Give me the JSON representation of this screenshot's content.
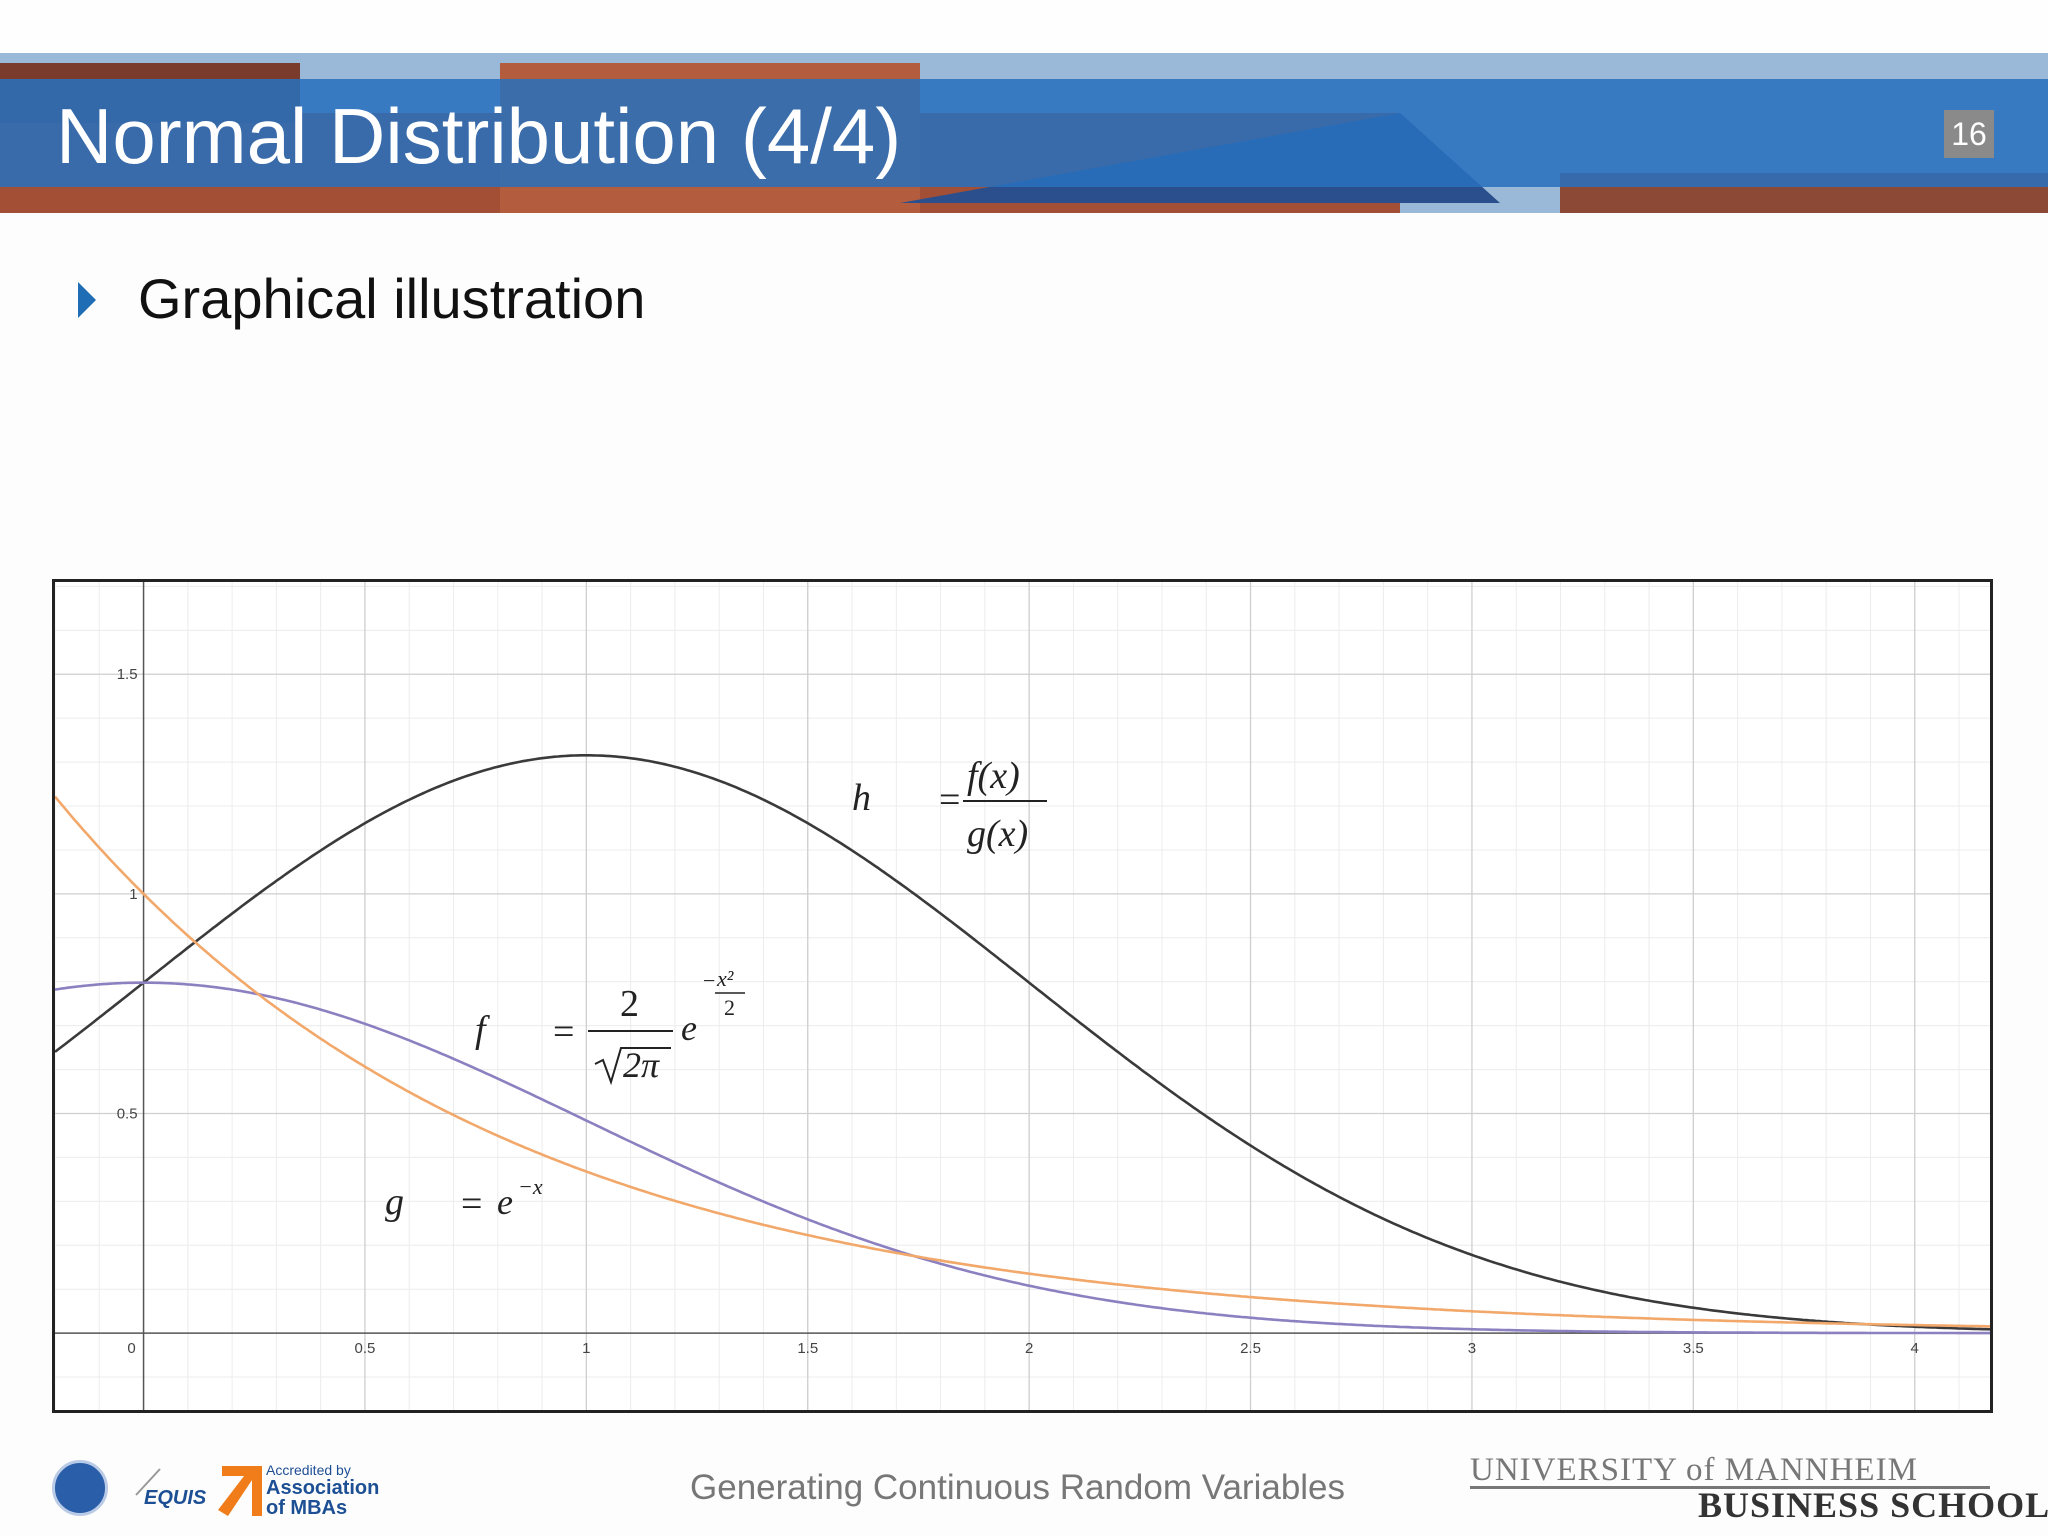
{
  "slide": {
    "title": "Normal Distribution (4/4)",
    "number": "16",
    "bullet": "Graphical illustration",
    "footer": "Generating Continuous Random Variables"
  },
  "branding": {
    "university_line1": "UNIVERSITY of MANNHEIM",
    "university_line2": "BUSINESS SCHOOL",
    "equis_label": "EQUIS",
    "amba_label_small": "Accredited by",
    "amba_label_1": "Association",
    "amba_label_2": "of MBAs"
  },
  "colors": {
    "header_band": "#2870be",
    "bullet": "#1f6db5",
    "curve_h": "#3a3a3a",
    "curve_f": "#8c80c0",
    "curve_g": "#f2a86a"
  },
  "chart_data": {
    "type": "line",
    "title": "",
    "xlabel": "",
    "ylabel": "",
    "xlim": [
      -0.2,
      4.17
    ],
    "ylim": [
      -0.175,
      1.71
    ],
    "grid": true,
    "x_ticks": [
      "0",
      "0.5",
      "1",
      "1.5",
      "2",
      "2.5",
      "3",
      "3.5",
      "4"
    ],
    "y_ticks": [
      "0.5",
      "1",
      "1.5"
    ],
    "series": [
      {
        "id": "h",
        "color": "#3a3a3a",
        "formula": "h(x) = f(x) / g(x)"
      },
      {
        "id": "f",
        "color": "#8c80c0",
        "formula": "f(x) = 2/sqrt(2π) · e^(-x²/2)"
      },
      {
        "id": "g",
        "color": "#f2a86a",
        "formula": "g(x) = e^(-x)"
      }
    ],
    "annotations": {
      "h": {
        "lhs": "h",
        "num": "f(x)",
        "den": "g(x)"
      },
      "f": {
        "lhs": "f",
        "num": "2",
        "den": "2π",
        "exp_base": "e",
        "exp_num": "x²",
        "exp_den": "2"
      },
      "g": {
        "lhs": "g",
        "rhs_base": "e",
        "rhs_exp": "−x"
      }
    }
  }
}
